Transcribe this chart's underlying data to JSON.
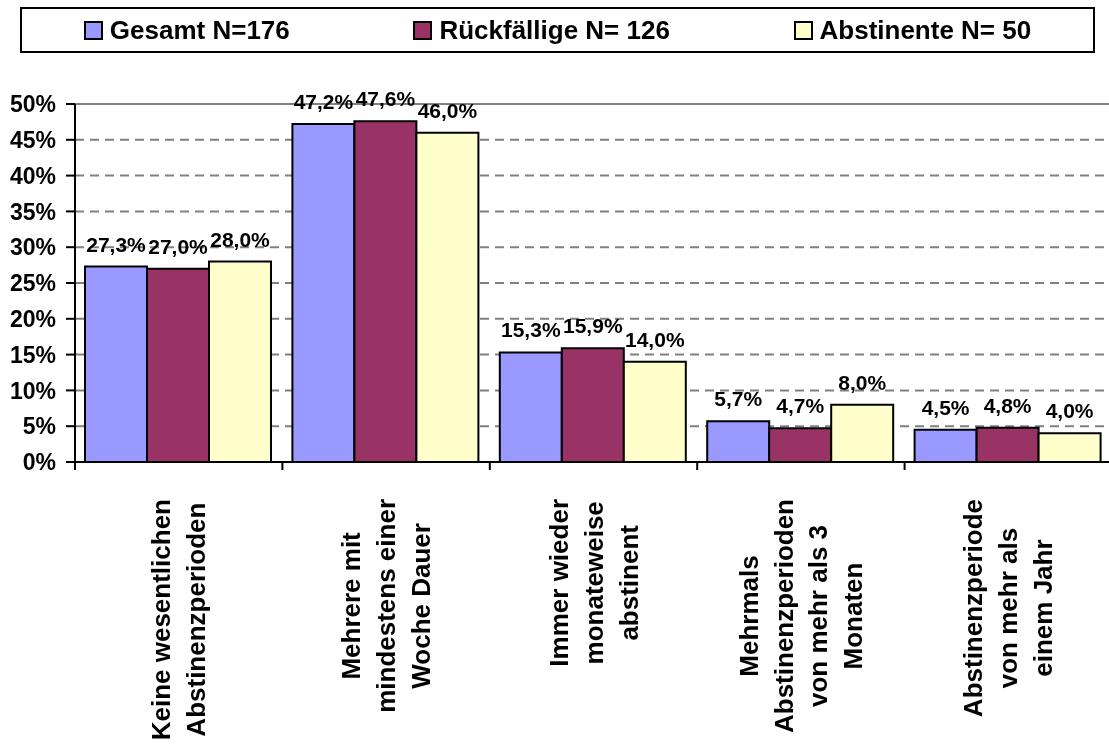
{
  "chart_data": {
    "type": "bar",
    "categories": [
      "Keine wesentlichen\nAbstinenzperioden",
      "Mehrere mit\nmindestens einer\nWoche Dauer",
      "Immer wieder\nmonateweise\nabstinent",
      "Mehrmals\nAbstinenzperioden\nvon mehr als 3\nMonaten",
      "Abstinenzperiode\nvon mehr als\neinem Jahr"
    ],
    "series": [
      {
        "name": "Gesamt N=176",
        "color": "#9999ff",
        "values": [
          27.3,
          47.2,
          15.3,
          5.7,
          4.5
        ],
        "value_labels": [
          "27,3%",
          "47,2%",
          "15,3%",
          "5,7%",
          "4,5%"
        ]
      },
      {
        "name": "Rückfällige N= 126",
        "color": "#993366",
        "values": [
          27.0,
          47.6,
          15.9,
          4.7,
          4.8
        ],
        "value_labels": [
          "27,0%",
          "47,6%",
          "15,9%",
          "4,7%",
          "4,8%"
        ]
      },
      {
        "name": "Abstinente N= 50",
        "color": "#ffffcc",
        "values": [
          28.0,
          46.0,
          14.0,
          8.0,
          4.0
        ],
        "value_labels": [
          "28,0%",
          "46,0%",
          "14,0%",
          "8,0%",
          "4,0%"
        ]
      }
    ],
    "ylim": [
      0,
      50
    ],
    "yticks": [
      {
        "value": 0,
        "label": "0%"
      },
      {
        "value": 5,
        "label": "5%"
      },
      {
        "value": 10,
        "label": "10%"
      },
      {
        "value": 15,
        "label": "15%"
      },
      {
        "value": 20,
        "label": "20%"
      },
      {
        "value": 25,
        "label": "25%"
      },
      {
        "value": 30,
        "label": "30%"
      },
      {
        "value": 35,
        "label": "35%"
      },
      {
        "value": 40,
        "label": "40%"
      },
      {
        "value": 45,
        "label": "45%"
      },
      {
        "value": 50,
        "label": "50%"
      }
    ],
    "grid": "y",
    "legend": "top"
  }
}
